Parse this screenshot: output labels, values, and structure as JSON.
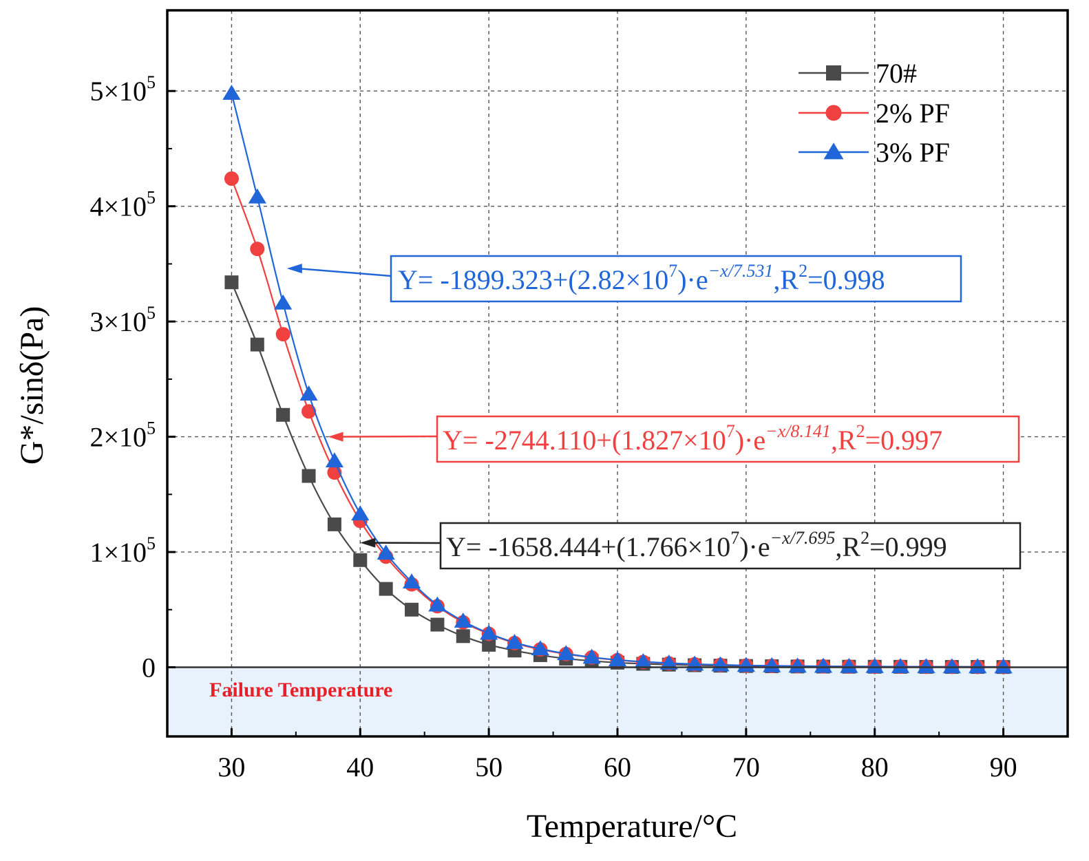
{
  "chart_data": {
    "type": "line",
    "title": "",
    "xlabel": "Temperature/°C",
    "ylabel": "G*/sinδ(Pa)",
    "xlim": [
      25,
      95
    ],
    "ylim": [
      -60000,
      570000
    ],
    "xticks": [
      30,
      40,
      50,
      60,
      70,
      80,
      90
    ],
    "yticks": [
      {
        "value": 0,
        "mant": "0",
        "exp": ""
      },
      {
        "value": 100000,
        "mant": "1×10",
        "exp": "5"
      },
      {
        "value": 200000,
        "mant": "2×10",
        "exp": "5"
      },
      {
        "value": 300000,
        "mant": "3×10",
        "exp": "5"
      },
      {
        "value": 400000,
        "mant": "4×10",
        "exp": "5"
      },
      {
        "value": 500000,
        "mant": "5×10",
        "exp": "5"
      }
    ],
    "grid": true,
    "legend_position": "top-right",
    "x": [
      30,
      32,
      34,
      36,
      38,
      40,
      42,
      44,
      46,
      48,
      50,
      52,
      54,
      56,
      58,
      60,
      62,
      64,
      66,
      68,
      70,
      72,
      74,
      76,
      78,
      80,
      82,
      84,
      86,
      88,
      90
    ],
    "series": [
      {
        "name": "70#",
        "color": "#4a4a4a",
        "marker": "square",
        "values": [
          334000,
          280000,
          219000,
          166000,
          124000,
          93000,
          68000,
          50000,
          37000,
          27000,
          19500,
          14500,
          10500,
          7500,
          5500,
          4000,
          3000,
          2300,
          1800,
          1400,
          1100,
          900,
          700,
          600,
          500,
          450,
          400,
          350,
          300,
          300,
          250
        ]
      },
      {
        "name": "2% PF",
        "color": "#f04040",
        "marker": "circle",
        "values": [
          424000,
          363000,
          289000,
          222000,
          169000,
          127000,
          96000,
          72000,
          53000,
          39000,
          29000,
          21000,
          15500,
          11500,
          8500,
          6200,
          4600,
          3400,
          2600,
          2000,
          1500,
          1200,
          1000,
          800,
          700,
          600,
          500,
          450,
          400,
          350,
          300
        ]
      },
      {
        "name": "3% PF",
        "color": "#2166d8",
        "marker": "triangle",
        "values": [
          498000,
          408000,
          316000,
          237000,
          179000,
          133000,
          99000,
          74000,
          54000,
          40000,
          29500,
          21500,
          16000,
          11800,
          8700,
          6400,
          4800,
          3600,
          2700,
          2100,
          1600,
          1300,
          1000,
          850,
          700,
          600,
          520,
          460,
          400,
          360,
          320
        ]
      }
    ],
    "annotations": [
      {
        "name": "3% PF fit",
        "color": "#2166d8",
        "pre": "Y= -1899.323+(2.82×10",
        "sup1": "7",
        "mid": ")·e",
        "sup2": "−x/7.531",
        "post1": ",R",
        "sup3": "2",
        "post2": "=0.998",
        "arrow_target_x": 34.3,
        "arrow_target_y": 346000
      },
      {
        "name": "2% PF fit",
        "color": "#f04040",
        "pre": "Y= -2744.110+(1.827×10",
        "sup1": "7",
        "mid": ")·e",
        "sup2": "−x/8.141",
        "post1": ",R",
        "sup3": "2",
        "post2": "=0.997",
        "arrow_target_x": 37.5,
        "arrow_target_y": 200000
      },
      {
        "name": "70# fit",
        "color": "#222222",
        "pre": "Y= -1658.444+(1.766×10",
        "sup1": "7",
        "mid": ")·e",
        "sup2": "−x/7.695",
        "post1": ",R",
        "sup3": "2",
        "post2": "=0.999",
        "arrow_target_x": 40.0,
        "arrow_target_y": 108000
      }
    ],
    "shaded_region": {
      "label": "Failure Temperature",
      "label_color": "#e8202a",
      "fill": "#e8f2fc",
      "y_from": -60000,
      "y_to": 0
    }
  }
}
